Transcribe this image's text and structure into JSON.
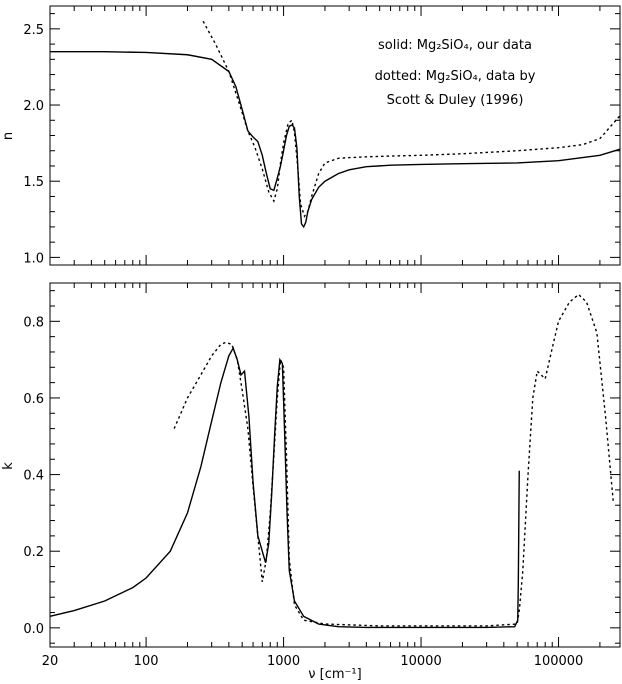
{
  "chart_data": [
    {
      "type": "line",
      "panel": "top",
      "ylabel": "n",
      "xlabel": "",
      "xscale": "log",
      "xlim": [
        20,
        280000
      ],
      "ylim": [
        0.95,
        2.65
      ],
      "xtick_values": [
        20,
        100,
        1000,
        10000,
        100000
      ],
      "xtick_labels": [
        "",
        "",
        "",
        "",
        ""
      ],
      "ytick_values": [
        1.0,
        1.5,
        2.0,
        2.5
      ],
      "ytick_labels": [
        "1.0",
        "1.5",
        "2.0",
        "2.5"
      ],
      "annotations": [
        "solid: Mg₂SiO₄, our data",
        "dotted: Mg₂SiO₄, data by",
        "Scott & Duley (1996)"
      ],
      "series": [
        {
          "style": "solid",
          "x": [
            20,
            50,
            100,
            200,
            300,
            400,
            450,
            500,
            550,
            600,
            650,
            700,
            750,
            800,
            850,
            900,
            950,
            1000,
            1050,
            1100,
            1150,
            1200,
            1250,
            1300,
            1350,
            1400,
            1450,
            1500,
            1600,
            1800,
            2000,
            2500,
            3000,
            4000,
            6000,
            10000,
            20000,
            50000,
            100000,
            200000,
            280000
          ],
          "y": [
            2.35,
            2.35,
            2.345,
            2.33,
            2.3,
            2.22,
            2.12,
            1.97,
            1.83,
            1.79,
            1.76,
            1.67,
            1.55,
            1.45,
            1.44,
            1.52,
            1.6,
            1.7,
            1.8,
            1.86,
            1.87,
            1.85,
            1.72,
            1.4,
            1.22,
            1.2,
            1.23,
            1.3,
            1.38,
            1.46,
            1.5,
            1.55,
            1.575,
            1.595,
            1.605,
            1.61,
            1.615,
            1.62,
            1.635,
            1.67,
            1.71
          ]
        },
        {
          "style": "dotted",
          "x": [
            260,
            320,
            400,
            480,
            550,
            620,
            700,
            780,
            850,
            900,
            950,
            1000,
            1080,
            1150,
            1200,
            1260,
            1330,
            1420,
            1500,
            1600,
            1800,
            2000,
            2500,
            3000,
            4000,
            6000,
            10000,
            20000,
            50000,
            100000,
            150000,
            200000,
            280000
          ],
          "y": [
            2.55,
            2.4,
            2.22,
            2.0,
            1.83,
            1.72,
            1.58,
            1.43,
            1.37,
            1.45,
            1.62,
            1.75,
            1.88,
            1.9,
            1.82,
            1.62,
            1.35,
            1.27,
            1.3,
            1.4,
            1.55,
            1.62,
            1.65,
            1.655,
            1.66,
            1.665,
            1.67,
            1.68,
            1.7,
            1.72,
            1.74,
            1.78,
            1.93
          ]
        }
      ]
    },
    {
      "type": "line",
      "panel": "bottom",
      "ylabel": "k",
      "xlabel": "ν [cm⁻¹]",
      "xscale": "log",
      "xlim": [
        20,
        280000
      ],
      "ylim": [
        -0.05,
        0.9
      ],
      "xtick_values": [
        20,
        100,
        1000,
        10000,
        100000
      ],
      "xtick_labels": [
        "20",
        "100",
        "1000",
        "10000",
        "100000"
      ],
      "ytick_values": [
        0.0,
        0.2,
        0.4,
        0.6,
        0.8
      ],
      "ytick_labels": [
        "0.0",
        "0.2",
        "0.4",
        "0.6",
        "0.8"
      ],
      "series": [
        {
          "style": "solid",
          "x": [
            20,
            30,
            50,
            80,
            100,
            150,
            200,
            250,
            300,
            350,
            400,
            430,
            460,
            490,
            520,
            560,
            600,
            650,
            700,
            740,
            780,
            820,
            860,
            900,
            940,
            980,
            1020,
            1060,
            1100,
            1200,
            1400,
            1800,
            2500,
            4000,
            10000,
            30000,
            48000,
            50500,
            51000,
            51500,
            51800
          ],
          "y": [
            0.03,
            0.045,
            0.07,
            0.105,
            0.13,
            0.2,
            0.3,
            0.42,
            0.54,
            0.64,
            0.71,
            0.73,
            0.7,
            0.66,
            0.67,
            0.55,
            0.38,
            0.24,
            0.2,
            0.17,
            0.22,
            0.35,
            0.5,
            0.63,
            0.7,
            0.69,
            0.5,
            0.3,
            0.15,
            0.07,
            0.03,
            0.01,
            0.003,
            0.001,
            0.001,
            0.001,
            0.003,
            0.02,
            0.12,
            0.3,
            0.41
          ]
        },
        {
          "style": "dotted",
          "x": [
            160,
            200,
            250,
            300,
            350,
            380,
            420,
            460,
            500,
            550,
            600,
            650,
            700,
            750,
            800,
            850,
            900,
            950,
            1000,
            1050,
            1100,
            1200,
            1400,
            2000,
            5000,
            10000,
            30000,
            50000,
            52000,
            55000,
            60000,
            65000,
            70000,
            80000,
            90000,
            100000,
            120000,
            140000,
            160000,
            190000,
            220000,
            250000
          ],
          "y": [
            0.52,
            0.6,
            0.66,
            0.71,
            0.74,
            0.745,
            0.74,
            0.7,
            0.62,
            0.52,
            0.37,
            0.24,
            0.12,
            0.18,
            0.3,
            0.45,
            0.6,
            0.7,
            0.68,
            0.45,
            0.18,
            0.06,
            0.02,
            0.01,
            0.005,
            0.005,
            0.005,
            0.01,
            0.05,
            0.15,
            0.4,
            0.6,
            0.67,
            0.65,
            0.73,
            0.8,
            0.85,
            0.87,
            0.85,
            0.77,
            0.55,
            0.33
          ]
        }
      ]
    }
  ]
}
